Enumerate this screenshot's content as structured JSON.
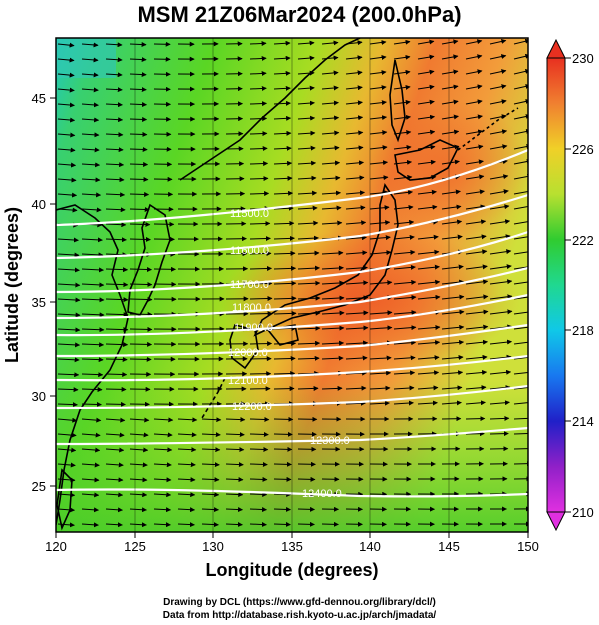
{
  "title": "MSM 21Z06Mar2024 (200.0hPa)",
  "x_axis": {
    "label": "Longitude (degrees)",
    "range": [
      120,
      150
    ],
    "ticks": [
      "120",
      "125",
      "130",
      "135",
      "140",
      "145",
      "150"
    ]
  },
  "y_axis": {
    "label": "Latitude (degrees)",
    "range": [
      22.4,
      47.6
    ],
    "ticks": [
      "25",
      "30",
      "35",
      "40",
      "45"
    ]
  },
  "colorbar": {
    "range": [
      210,
      230
    ],
    "ticks": [
      "210",
      "214",
      "218",
      "222",
      "226",
      "230"
    ]
  },
  "contour_labels": [
    "11500.0",
    "11600.0",
    "11700.0",
    "11800.0",
    "11900.0",
    "12000.0",
    "12100.0",
    "12200.0",
    "12300.0",
    "12400.0"
  ],
  "credits": {
    "line1": "Drawing by DCL (https://www.gfd-dennou.org/library/dcl/)",
    "line2": "Data from http://database.rish.kyoto-u.ac.jp/arch/jmadata/"
  }
}
